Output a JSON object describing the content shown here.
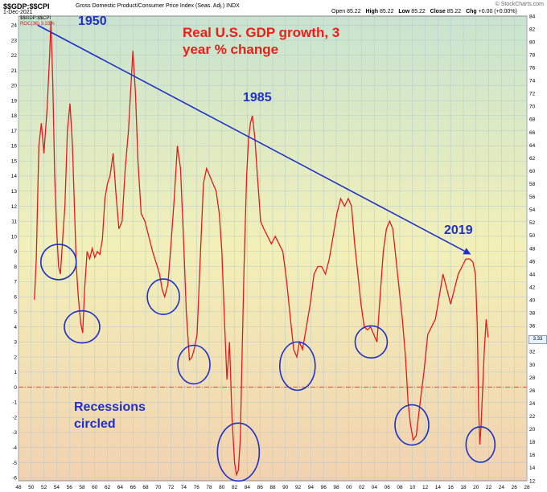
{
  "header": {
    "symbol": "$$GDP:$$CPI",
    "description": "Gross Domestic Product/Consumer Price Index (Seas. Adj.)  INDX",
    "date": "1-Dec-2021",
    "open_label": "Open",
    "open": "85.22",
    "high_label": "High",
    "high": "85.22",
    "low_label": "Low",
    "low": "85.22",
    "close_label": "Close",
    "close": "85.22",
    "chg_label": "Chg",
    "chg": "+0.00 (+0.00%)",
    "brand": "© StockCharts.com",
    "last_badge": "3.33"
  },
  "legend": {
    "line1": "$$GDP:$$CPI",
    "line2": "ROC(36) 3.33%"
  },
  "annotations": {
    "year_1950": "1950",
    "year_1985": "1985",
    "year_2019": "2019",
    "title_line1": "Real U.S. GDP growth, 3",
    "title_line2": "year % change",
    "recession_line1": "Recessions",
    "recession_line2": "circled"
  },
  "colors": {
    "series": "#e41a1a",
    "annotation_blue": "#1f30c8",
    "annotation_red": "#e8201a",
    "zero_line": "#d04a30",
    "bg_top": "#c8e4d0",
    "bg_mid": "#f2f0b8",
    "bg_bottom": "#f2d2b0"
  },
  "chart_data": {
    "type": "line",
    "title": "Real U.S. GDP growth, 3 year % change",
    "xlabel": "",
    "ylabel": "",
    "xlim": [
      1948,
      2028
    ],
    "ylim": [
      -6.2,
      24.6
    ],
    "right_ylim": [
      12,
      84
    ],
    "x_ticks": [
      "48",
      "50",
      "52",
      "54",
      "56",
      "58",
      "60",
      "62",
      "64",
      "66",
      "68",
      "70",
      "72",
      "74",
      "76",
      "78",
      "80",
      "82",
      "84",
      "86",
      "88",
      "90",
      "92",
      "94",
      "96",
      "98",
      "00",
      "02",
      "04",
      "06",
      "08",
      "10",
      "12",
      "14",
      "16",
      "18",
      "20",
      "22",
      "24",
      "26",
      "28"
    ],
    "left_ticks": [
      -6,
      -5,
      -4,
      -3,
      -2,
      -1,
      0,
      1,
      2,
      3,
      4,
      5,
      6,
      7,
      8,
      9,
      10,
      11,
      12,
      13,
      14,
      15,
      16,
      17,
      18,
      19,
      20,
      21,
      22,
      23,
      24
    ],
    "right_ticks": [
      12,
      14,
      16,
      18,
      20,
      22,
      24,
      26,
      28,
      30,
      32,
      34,
      36,
      38,
      40,
      42,
      44,
      46,
      48,
      50,
      52,
      54,
      56,
      58,
      60,
      62,
      64,
      66,
      68,
      70,
      72,
      74,
      76,
      78,
      80,
      82,
      84
    ],
    "grid": true,
    "series": [
      {
        "name": "ROC(36)",
        "x": [
          1950.5,
          1950.8,
          1951.2,
          1951.6,
          1952.0,
          1952.5,
          1952.9,
          1953.1,
          1953.4,
          1953.7,
          1954.0,
          1954.3,
          1954.6,
          1954.9,
          1955.3,
          1955.7,
          1956.1,
          1956.5,
          1956.8,
          1957.1,
          1957.4,
          1957.8,
          1958.1,
          1958.4,
          1958.8,
          1959.2,
          1959.6,
          1960.0,
          1960.4,
          1960.8,
          1961.2,
          1961.6,
          1962.0,
          1962.4,
          1962.9,
          1963.3,
          1963.8,
          1964.3,
          1964.8,
          1965.3,
          1965.7,
          1966.0,
          1966.4,
          1966.8,
          1967.3,
          1967.9,
          1968.5,
          1969.1,
          1969.7,
          1970.2,
          1970.6,
          1971.0,
          1971.5,
          1972.0,
          1972.5,
          1973.0,
          1973.5,
          1974.0,
          1974.4,
          1974.9,
          1975.3,
          1975.7,
          1976.1,
          1976.6,
          1977.1,
          1977.6,
          1978.1,
          1978.6,
          1979.1,
          1979.6,
          1980.0,
          1980.4,
          1980.8,
          1981.2,
          1981.6,
          1982.0,
          1982.3,
          1982.6,
          1982.9,
          1983.2,
          1983.5,
          1983.9,
          1984.2,
          1984.5,
          1984.8,
          1985.2,
          1985.6,
          1986.1,
          1986.6,
          1987.2,
          1987.8,
          1988.4,
          1989.0,
          1989.6,
          1990.2,
          1990.8,
          1991.3,
          1991.8,
          1992.2,
          1992.7,
          1993.3,
          1993.9,
          1994.5,
          1995.1,
          1995.7,
          1996.3,
          1996.9,
          1997.5,
          1998.1,
          1998.7,
          1999.3,
          1999.9,
          2000.4,
          2000.9,
          2001.4,
          2001.9,
          2002.4,
          2002.9,
          2003.4,
          2003.9,
          2004.4,
          2004.9,
          2005.4,
          2005.9,
          2006.4,
          2006.9,
          2007.4,
          2007.9,
          2008.4,
          2008.9,
          2009.3,
          2009.7,
          2010.1,
          2010.6,
          2011.2,
          2011.8,
          2012.4,
          2013.0,
          2013.6,
          2014.2,
          2014.8,
          2015.4,
          2016.0,
          2016.6,
          2017.2,
          2017.8,
          2018.4,
          2019.0,
          2019.5,
          2019.9,
          2020.2,
          2020.4,
          2020.6,
          2020.8,
          2021.0,
          2021.3,
          2021.6,
          2021.9
        ],
        "values": [
          5.8,
          8.5,
          16.0,
          17.5,
          15.5,
          18.5,
          22.0,
          24.3,
          20.0,
          14.0,
          10.5,
          8.0,
          7.5,
          9.5,
          12.0,
          17.0,
          18.8,
          16.0,
          12.0,
          8.0,
          6.0,
          4.2,
          3.6,
          6.5,
          9.0,
          8.5,
          9.2,
          8.6,
          9.0,
          8.8,
          9.8,
          12.5,
          13.5,
          14.0,
          15.5,
          13.0,
          10.5,
          11.0,
          14.5,
          17.0,
          20.0,
          22.3,
          19.5,
          15.0,
          11.5,
          11.0,
          10.0,
          9.0,
          8.2,
          7.5,
          6.5,
          6.0,
          6.8,
          9.5,
          12.5,
          16.0,
          14.5,
          9.5,
          5.0,
          1.8,
          2.0,
          2.6,
          3.5,
          8.5,
          13.5,
          14.5,
          14.0,
          13.5,
          13.0,
          11.5,
          9.0,
          4.5,
          0.5,
          3.0,
          -2.0,
          -5.0,
          -5.8,
          -5.5,
          -3.5,
          2.5,
          8.0,
          14.0,
          16.5,
          17.5,
          18.0,
          16.5,
          14.0,
          11.0,
          10.5,
          10.0,
          9.5,
          10.0,
          9.5,
          9.0,
          7.0,
          4.5,
          2.5,
          2.0,
          3.0,
          2.5,
          4.0,
          5.5,
          7.5,
          8.0,
          8.0,
          7.5,
          8.5,
          10.0,
          11.5,
          12.5,
          12.0,
          12.5,
          12.0,
          9.5,
          7.5,
          5.5,
          4.0,
          3.8,
          4.0,
          3.5,
          3.0,
          6.0,
          9.0,
          10.5,
          11.0,
          10.5,
          8.5,
          6.5,
          4.5,
          2.0,
          -1.0,
          -2.5,
          -3.5,
          -3.2,
          -1.0,
          1.0,
          3.5,
          4.0,
          4.5,
          6.0,
          7.5,
          6.5,
          5.5,
          6.5,
          7.5,
          8.0,
          8.5,
          8.5,
          8.3,
          7.5,
          4.0,
          -1.5,
          -3.8,
          -2.5,
          -0.5,
          2.5,
          4.5,
          3.3
        ]
      }
    ],
    "annotation_points": {
      "trend_line": [
        [
          1951.0,
          24.0
        ],
        [
          2019.2,
          8.8
        ]
      ]
    },
    "circled_recessions": [
      [
        1954.3,
        8.3
      ],
      [
        1958.0,
        4.0
      ],
      [
        1970.8,
        6.0
      ],
      [
        1975.6,
        1.5
      ],
      [
        1982.6,
        -4.3
      ],
      [
        1991.9,
        1.4
      ],
      [
        2003.5,
        3.0
      ],
      [
        2009.9,
        -2.5
      ],
      [
        2020.7,
        -3.8
      ]
    ]
  }
}
